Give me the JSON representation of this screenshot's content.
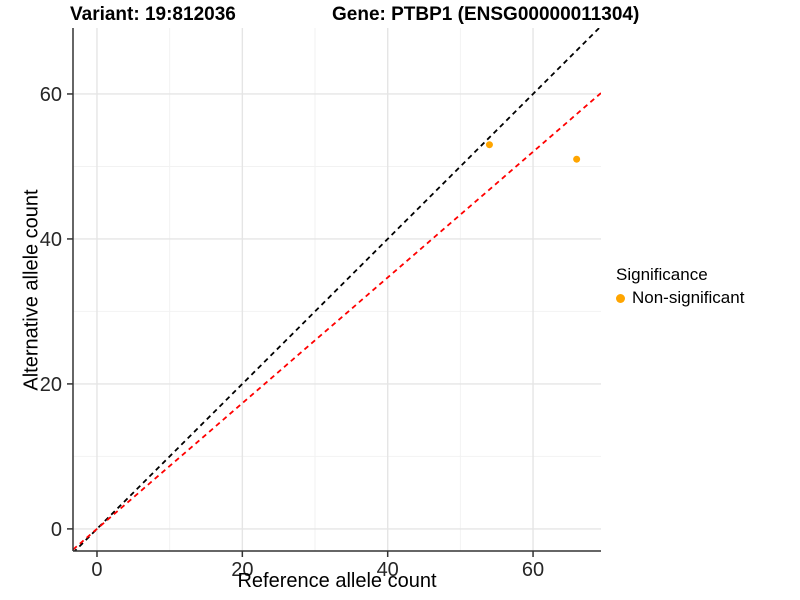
{
  "chart_data": {
    "type": "scatter",
    "title_left": "Variant: 19:812036",
    "title_right": "Gene: PTBP1 (ENSG00000011304)",
    "xlabel": "Reference allele count",
    "ylabel": "Alternative allele count",
    "xlim": [
      -3.3,
      69.35
    ],
    "ylim": [
      -3.05,
      69.1
    ],
    "x_major_ticks": [
      0,
      20,
      40,
      60
    ],
    "y_major_ticks": [
      0,
      20,
      40,
      60
    ],
    "x_minor_gridlines": [
      10,
      30,
      50
    ],
    "y_minor_gridlines": [
      10,
      30,
      50
    ],
    "grid": true,
    "series": [
      {
        "name": "Non-significant",
        "color": "#FFA500",
        "points": [
          {
            "x": 54,
            "y": 53
          },
          {
            "x": 66,
            "y": 51
          }
        ]
      }
    ],
    "reference_lines": [
      {
        "name": "identity-line",
        "slope": 1.0,
        "intercept": 0,
        "color": "#000000",
        "style": "dashed"
      },
      {
        "name": "expected-ratio-line",
        "slope": 0.867,
        "intercept": 0,
        "color": "#FF0000",
        "style": "dashed"
      }
    ],
    "legend": {
      "title": "Significance",
      "position": "right",
      "items": [
        {
          "label": "Non-significant",
          "color": "#FFA500"
        }
      ]
    },
    "colors": {
      "major_grid": "#E5E5E5",
      "minor_grid": "#F2F2F2",
      "axis_line": "#333333",
      "tick_label": "#262626",
      "panel_background": "#FFFFFF"
    }
  }
}
